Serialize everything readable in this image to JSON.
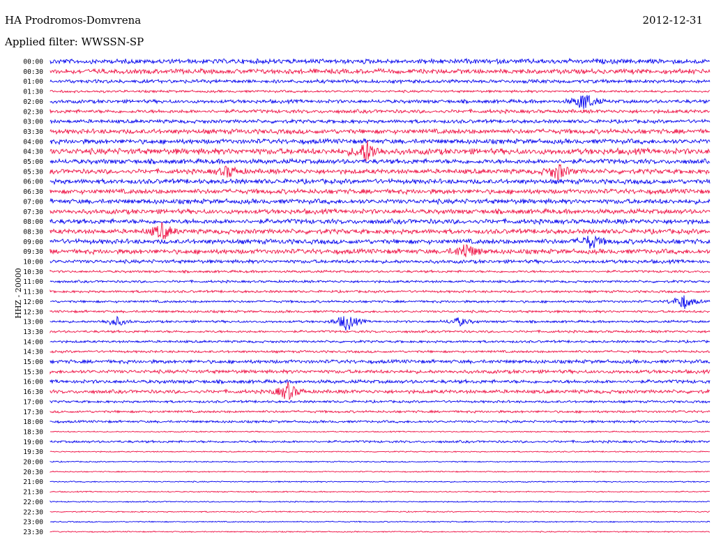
{
  "header": {
    "station": "HA Prodromos-Domvrena",
    "date": "2012-12-31",
    "filter": "Applied filter: WWSSN-SP"
  },
  "chart_data": {
    "type": "line",
    "title": "HA Prodromos-Domvrena",
    "ylabel": "HHZ - 20000",
    "trace_colors": [
      "#0000ee",
      "#ee1144"
    ],
    "rows": [
      "00:00",
      "00:30",
      "01:00",
      "01:30",
      "02:00",
      "02:30",
      "03:00",
      "03:30",
      "04:00",
      "04:30",
      "05:00",
      "05:30",
      "06:00",
      "06:30",
      "07:00",
      "07:30",
      "08:00",
      "08:30",
      "09:00",
      "09:30",
      "10:00",
      "10:30",
      "11:00",
      "11:30",
      "12:00",
      "12:30",
      "13:00",
      "13:30",
      "14:00",
      "14:30",
      "15:00",
      "15:30",
      "16:00",
      "16:30",
      "17:00",
      "17:30",
      "18:00",
      "18:30",
      "19:00",
      "19:30",
      "20:00",
      "20:30",
      "21:00",
      "21:30",
      "22:00",
      "22:30",
      "23:00",
      "23:30"
    ],
    "noise_level": [
      4,
      4,
      3,
      2,
      3,
      3,
      3,
      4,
      4,
      5,
      4,
      4,
      4,
      4,
      4,
      4,
      4,
      4,
      4,
      4,
      3,
      2,
      2,
      2,
      2,
      2,
      2,
      2,
      2,
      2,
      3,
      3,
      3,
      3,
      2,
      2,
      2,
      1,
      2,
      1,
      1,
      1,
      1,
      1,
      1,
      1,
      1,
      1
    ],
    "events": [
      {
        "row": 4,
        "t": 0.81,
        "a": 14
      },
      {
        "row": 9,
        "t": 0.48,
        "a": 16
      },
      {
        "row": 11,
        "t": 0.77,
        "a": 12
      },
      {
        "row": 11,
        "t": 0.27,
        "a": 8
      },
      {
        "row": 17,
        "t": 0.17,
        "a": 12
      },
      {
        "row": 18,
        "t": 0.82,
        "a": 10
      },
      {
        "row": 19,
        "t": 0.63,
        "a": 12
      },
      {
        "row": 26,
        "t": 0.45,
        "a": 14
      },
      {
        "row": 26,
        "t": 0.1,
        "a": 7
      },
      {
        "row": 26,
        "t": 0.62,
        "a": 6
      },
      {
        "row": 33,
        "t": 0.36,
        "a": 13
      },
      {
        "row": 24,
        "t": 0.96,
        "a": 11
      }
    ]
  }
}
